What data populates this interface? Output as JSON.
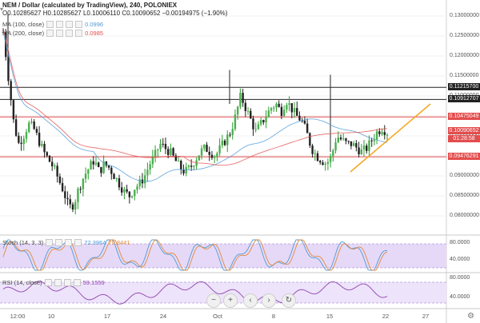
{
  "header": {
    "symbol": "NEM / Dollar (calculated by TradingView), 240, POLONIEX",
    "ohlc": "O0.10285627 H0.10285627 L0.10006110 C0.10090652 −0.00194975 (−1.90%)",
    "change_color": "#e03a3a"
  },
  "indicators": [
    {
      "label": "MA (100, close)",
      "value": "0.0996",
      "value_color": "#4f9ad6"
    },
    {
      "label": "MA (200, close)",
      "value": "0.0985",
      "value_color": "#e34d4d"
    }
  ],
  "price_axis": {
    "ticks": [
      "0.13000000",
      "0.12500000",
      "0.12000000",
      "0.11500000",
      "0.11000000",
      "0.10500000",
      "0.10000000",
      "0.09500000",
      "0.09000000",
      "0.08500000",
      "0.08000000"
    ],
    "tags": [
      {
        "text": "0.11215700",
        "bg": "#222222"
      },
      {
        "text": "0.10912707",
        "bg": "#222222"
      },
      {
        "text": "0.10475049",
        "bg": "#e34d4d"
      },
      {
        "text": "0.10090652",
        "bg": "#e34d4d"
      },
      {
        "text": "01:28:58",
        "bg": "#e34d4d"
      },
      {
        "text": "0.09476291",
        "bg": "#e34d4d"
      }
    ]
  },
  "stoch": {
    "label": "Stoch (14, 3, 3)",
    "k": "72.3964",
    "d": "70.8441",
    "k_color": "#4f9ad6",
    "d_color": "#e08a3c",
    "ticks": [
      "80.0000",
      "40.0000"
    ]
  },
  "rsi": {
    "label": "RSI (14, close)",
    "value": "59.1559",
    "value_color": "#8e44ad",
    "ticks": [
      "80.0000",
      "40.0000"
    ]
  },
  "time_axis": [
    "12:00",
    "10",
    "17",
    "24",
    "Oct",
    "8",
    "15",
    "22",
    "27"
  ],
  "nav_buttons": [
    {
      "name": "zoom-out-button",
      "glyph": "−"
    },
    {
      "name": "zoom-in-button",
      "glyph": "+"
    },
    {
      "name": "scroll-left-button",
      "glyph": "‹"
    },
    {
      "name": "scroll-right-button",
      "glyph": "›"
    },
    {
      "name": "reset-chart-button",
      "glyph": "↻"
    }
  ],
  "chart_data": {
    "type": "candlestick",
    "x_ticks": [
      "12:00",
      "10",
      "17",
      "24",
      "Oct",
      "8",
      "15",
      "22",
      "27"
    ],
    "y_range": [
      0.0775,
      0.1315
    ],
    "candles_close": [
      0.126,
      0.115,
      0.104,
      0.098,
      0.1,
      0.103,
      0.102,
      0.099,
      0.096,
      0.094,
      0.092,
      0.089,
      0.086,
      0.082,
      0.083,
      0.087,
      0.09,
      0.092,
      0.094,
      0.091,
      0.093,
      0.092,
      0.09,
      0.088,
      0.086,
      0.085,
      0.087,
      0.088,
      0.09,
      0.093,
      0.095,
      0.098,
      0.097,
      0.096,
      0.094,
      0.092,
      0.091,
      0.092,
      0.094,
      0.096,
      0.097,
      0.096,
      0.095,
      0.097,
      0.099,
      0.101,
      0.105,
      0.11,
      0.107,
      0.104,
      0.101,
      0.103,
      0.105,
      0.107,
      0.108,
      0.106,
      0.109,
      0.107,
      0.105,
      0.104,
      0.101,
      0.097,
      0.095,
      0.094,
      0.093,
      0.095,
      0.1,
      0.099,
      0.098,
      0.098,
      0.097,
      0.096,
      0.097,
      0.099,
      0.101,
      0.102,
      0.1009
    ],
    "horizontal_levels": [
      0.112157,
      0.10912707,
      0.10475049,
      0.09476291
    ],
    "moving_averages": [
      "MA (100, close)",
      "MA (200, close)"
    ]
  }
}
